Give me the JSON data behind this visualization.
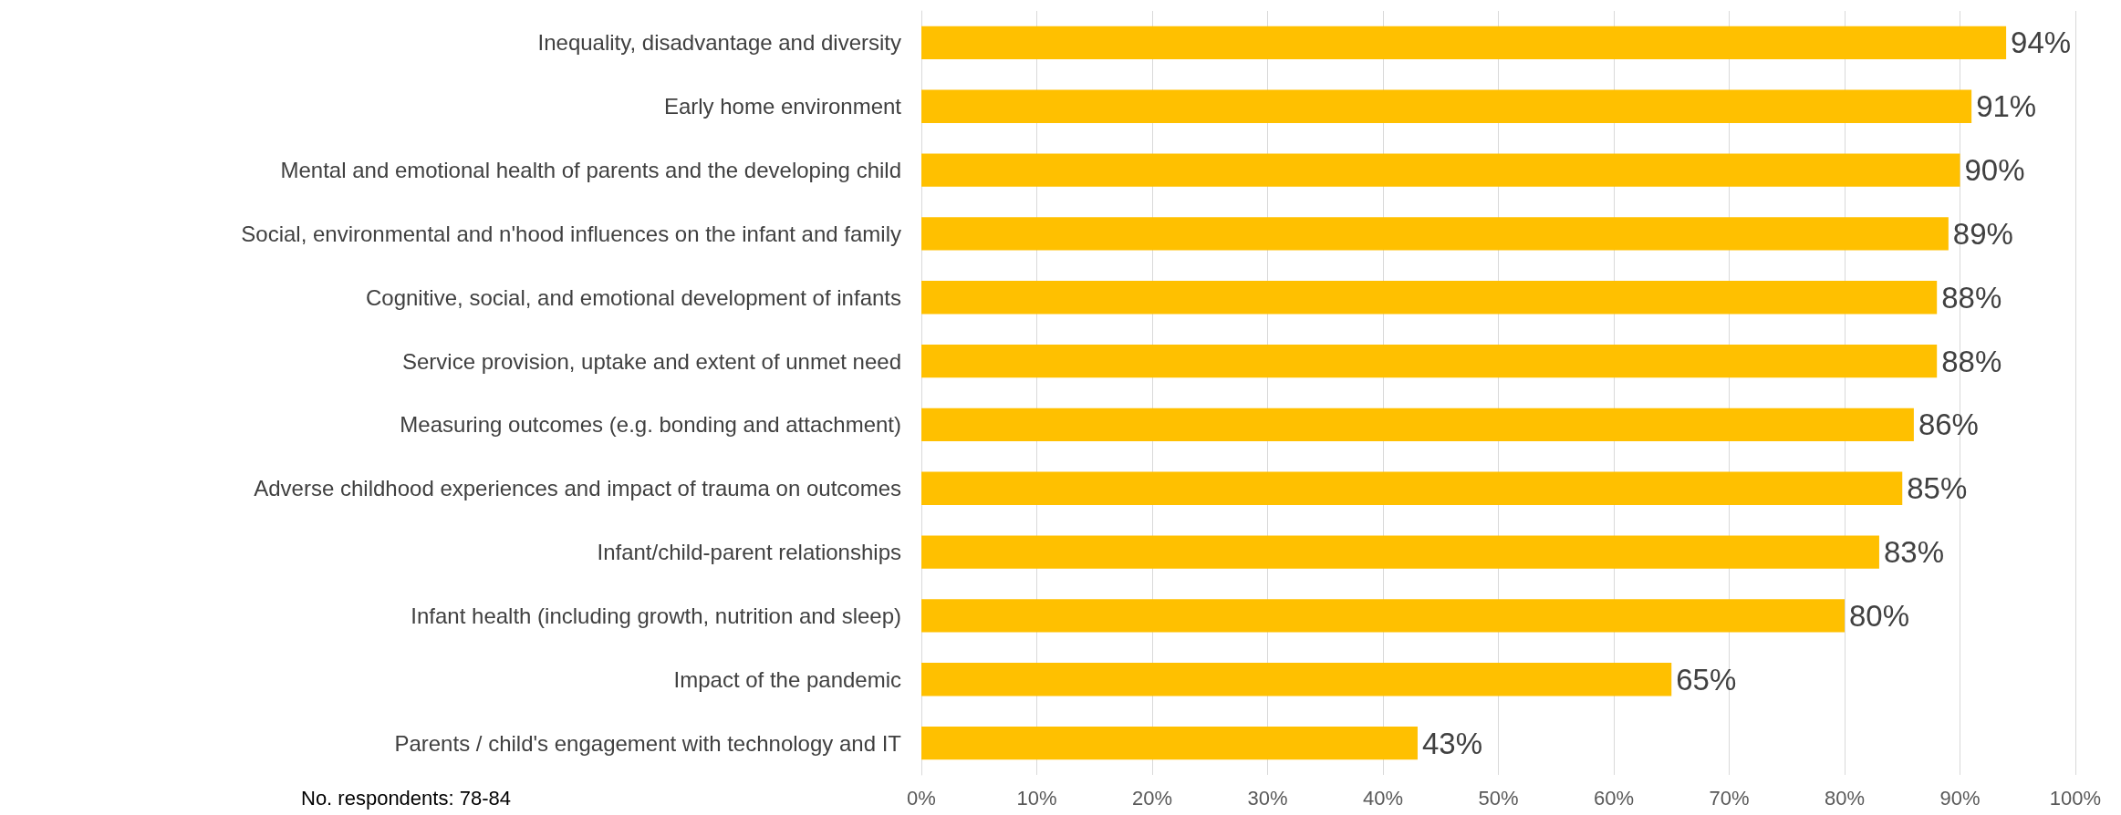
{
  "chart_data": {
    "type": "bar",
    "orientation": "horizontal",
    "categories": [
      "Inequality, disadvantage and diversity",
      "Early home environment",
      "Mental and emotional health of parents and the developing child",
      "Social, environmental and n'hood influences on the infant and family",
      "Cognitive, social, and emotional development of infants",
      "Service provision, uptake and extent of unmet need",
      "Measuring outcomes (e.g. bonding and attachment)",
      "Adverse childhood experiences and impact of trauma on outcomes",
      "Infant/child-parent relationships",
      "Infant health (including growth, nutrition and sleep)",
      "Impact of the pandemic",
      "Parents / child's engagement with technology and IT"
    ],
    "values": [
      94,
      91,
      90,
      89,
      88,
      88,
      86,
      85,
      83,
      80,
      65,
      43
    ],
    "value_labels": [
      "94%",
      "91%",
      "90%",
      "89%",
      "88%",
      "88%",
      "86%",
      "85%",
      "83%",
      "80%",
      "65%",
      "43%"
    ],
    "color": "#ffc000",
    "xlim": [
      0,
      100
    ],
    "xticks": [
      {
        "value": 0,
        "label": "0%"
      },
      {
        "value": 10,
        "label": "10%"
      },
      {
        "value": 20,
        "label": "20%"
      },
      {
        "value": 30,
        "label": "30%"
      },
      {
        "value": 40,
        "label": "40%"
      },
      {
        "value": 50,
        "label": "50%"
      },
      {
        "value": 60,
        "label": "60%"
      },
      {
        "value": 70,
        "label": "70%"
      },
      {
        "value": 80,
        "label": "80%"
      },
      {
        "value": 90,
        "label": "90%"
      },
      {
        "value": 100,
        "label": "100%"
      }
    ],
    "grid": "x",
    "annotations": [
      "No. respondents: 78-84"
    ]
  }
}
